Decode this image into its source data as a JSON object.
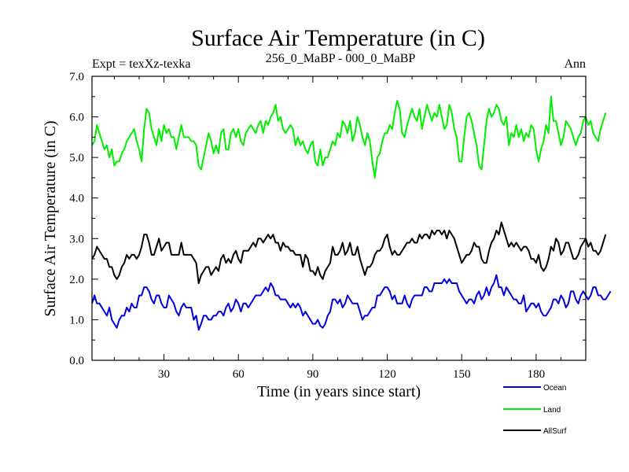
{
  "chart_data": {
    "type": "line",
    "title": "Surface Air Temperature (in C)",
    "subtitle_left": "Expt = texXz-texka",
    "subtitle_center": "256_0_MaBP - 000_0_MaBP",
    "subtitle_right": "Ann",
    "xlabel": "Time (in years since start)",
    "ylabel": "Surface Air Temperature (in C)",
    "xlim": [
      1,
      200
    ],
    "ylim": [
      0,
      7
    ],
    "x_ticks": [
      30,
      60,
      90,
      120,
      150,
      180
    ],
    "y_ticks": [
      0,
      1,
      2,
      3,
      4,
      5,
      6,
      7
    ],
    "y_tick_labels": [
      "0.0",
      "1.0",
      "2.0",
      "3.0",
      "4.0",
      "5.0",
      "6.0",
      "7.0"
    ],
    "legend_position": "bottom-right",
    "series": [
      {
        "name": "Ocean",
        "color": "#0000dd",
        "values": [
          1.4,
          1.6,
          1.4,
          1.4,
          1.3,
          1.2,
          1.1,
          1.3,
          1.0,
          0.9,
          0.8,
          1.0,
          1.1,
          1.1,
          1.3,
          1.2,
          1.4,
          1.3,
          1.3,
          1.6,
          1.6,
          1.8,
          1.8,
          1.7,
          1.5,
          1.4,
          1.6,
          1.6,
          1.4,
          1.3,
          1.3,
          1.6,
          1.5,
          1.4,
          1.2,
          1.1,
          1.3,
          1.4,
          1.3,
          1.3,
          1.3,
          1.0,
          1.1,
          0.75,
          0.9,
          1.1,
          1.1,
          1.0,
          1.0,
          1.1,
          1.1,
          1.2,
          1.2,
          1.1,
          1.3,
          1.4,
          1.2,
          1.3,
          1.5,
          1.4,
          1.2,
          1.4,
          1.4,
          1.3,
          1.4,
          1.5,
          1.6,
          1.6,
          1.6,
          1.7,
          1.8,
          1.7,
          1.9,
          1.8,
          1.6,
          1.6,
          1.5,
          1.5,
          1.5,
          1.4,
          1.3,
          1.4,
          1.3,
          1.4,
          1.3,
          1.1,
          1.2,
          1.1,
          1.0,
          0.9,
          0.9,
          1.0,
          0.85,
          0.8,
          0.9,
          1.1,
          1.2,
          1.5,
          1.5,
          1.4,
          1.5,
          1.3,
          1.4,
          1.6,
          1.5,
          1.4,
          1.4,
          1.4,
          1.2,
          1.0,
          1.1,
          1.1,
          1.2,
          1.3,
          1.3,
          1.6,
          1.6,
          1.7,
          1.8,
          1.8,
          1.7,
          1.5,
          1.6,
          1.4,
          1.4,
          1.4,
          1.6,
          1.4,
          1.3,
          1.5,
          1.6,
          1.6,
          1.6,
          1.6,
          1.8,
          1.8,
          1.7,
          1.7,
          1.9,
          1.9,
          1.9,
          1.9,
          2.0,
          1.9,
          2.0,
          1.9,
          1.9,
          1.9,
          1.7,
          1.6,
          1.5,
          1.4,
          1.5,
          1.5,
          1.4,
          1.6,
          1.7,
          1.5,
          1.6,
          1.8,
          1.6,
          1.8,
          1.9,
          2.1,
          1.8,
          1.8,
          1.6,
          1.8,
          1.7,
          1.6,
          1.5,
          1.5,
          1.4,
          1.4,
          1.6,
          1.2,
          1.3,
          1.4,
          1.4,
          1.3,
          1.4,
          1.2,
          1.1,
          1.1,
          1.2,
          1.3,
          1.5,
          1.5,
          1.4,
          1.6,
          1.5,
          1.3,
          1.4,
          1.7,
          1.7,
          1.5,
          1.4,
          1.6,
          1.7,
          1.6,
          1.5,
          1.6,
          1.8,
          1.8,
          1.6,
          1.6,
          1.5,
          1.5,
          1.6,
          1.7
        ]
      },
      {
        "name": "Land",
        "color": "#00ee00",
        "values": [
          5.3,
          5.4,
          5.8,
          5.6,
          5.4,
          5.2,
          5.3,
          5.0,
          5.2,
          4.8,
          4.9,
          4.9,
          5.1,
          5.2,
          5.4,
          5.5,
          5.6,
          5.7,
          5.4,
          5.2,
          4.9,
          5.7,
          6.2,
          6.1,
          5.7,
          5.5,
          5.3,
          5.7,
          5.4,
          5.8,
          5.6,
          5.7,
          5.5,
          5.5,
          5.2,
          5.5,
          5.8,
          5.5,
          5.5,
          5.5,
          5.4,
          5.4,
          5.3,
          4.8,
          4.7,
          5.0,
          5.3,
          5.6,
          5.4,
          5.1,
          5.3,
          5.1,
          5.6,
          5.7,
          5.2,
          5.2,
          5.6,
          5.7,
          5.5,
          5.7,
          5.4,
          5.3,
          5.6,
          5.7,
          5.8,
          5.7,
          5.6,
          5.8,
          5.9,
          5.6,
          5.9,
          5.8,
          6.0,
          6.1,
          6.3,
          5.9,
          6.0,
          5.7,
          5.6,
          5.7,
          5.8,
          5.7,
          5.3,
          5.5,
          5.3,
          5.4,
          5.2,
          5.1,
          5.3,
          5.4,
          4.9,
          4.8,
          5.2,
          4.8,
          5.0,
          5.0,
          5.2,
          5.4,
          5.3,
          5.6,
          5.5,
          5.9,
          5.8,
          5.6,
          5.9,
          5.4,
          5.6,
          6.0,
          5.8,
          5.5,
          5.3,
          5.6,
          5.4,
          4.9,
          4.5,
          5.0,
          5.1,
          5.4,
          5.6,
          5.6,
          5.8,
          5.7,
          6.1,
          6.4,
          6.2,
          5.6,
          5.5,
          5.8,
          6.0,
          6.2,
          6.0,
          5.9,
          6.2,
          5.7,
          6.0,
          6.3,
          6.1,
          5.9,
          6.1,
          6.0,
          6.3,
          6.0,
          5.7,
          5.8,
          6.3,
          6.1,
          5.7,
          5.5,
          4.9,
          4.9,
          5.5,
          6.0,
          6.1,
          5.9,
          5.6,
          5.3,
          4.8,
          4.7,
          5.3,
          5.9,
          6.2,
          6.0,
          6.1,
          6.3,
          6.2,
          5.9,
          5.8,
          6.0,
          5.3,
          5.6,
          5.5,
          5.8,
          5.5,
          5.7,
          5.4,
          5.6,
          5.5,
          5.8,
          5.7,
          5.2,
          4.9,
          5.2,
          5.4,
          5.8,
          5.6,
          6.5,
          5.9,
          5.9,
          5.6,
          5.3,
          5.5,
          5.9,
          5.8,
          5.7,
          5.5,
          5.3,
          5.5,
          5.6,
          5.9,
          6.0,
          5.8,
          5.9,
          5.6,
          5.5,
          5.4,
          5.7,
          5.9,
          6.1
        ]
      },
      {
        "name": "AllSurf",
        "color": "#000000",
        "values": [
          2.5,
          2.6,
          2.8,
          2.7,
          2.6,
          2.5,
          2.5,
          2.3,
          2.3,
          2.1,
          2.0,
          2.1,
          2.3,
          2.4,
          2.6,
          2.5,
          2.6,
          2.6,
          2.5,
          2.6,
          2.8,
          3.1,
          3.1,
          2.9,
          2.6,
          2.6,
          2.8,
          3.0,
          2.7,
          2.8,
          2.9,
          2.9,
          2.6,
          2.6,
          2.6,
          2.6,
          2.9,
          2.6,
          2.6,
          2.6,
          2.6,
          2.5,
          2.4,
          1.9,
          2.1,
          2.2,
          2.3,
          2.3,
          2.1,
          2.2,
          2.3,
          2.2,
          2.5,
          2.6,
          2.4,
          2.5,
          2.4,
          2.6,
          2.7,
          2.5,
          2.4,
          2.7,
          2.7,
          2.7,
          2.8,
          2.9,
          2.8,
          3.0,
          3.0,
          2.9,
          3.0,
          3.1,
          3.0,
          3.1,
          2.9,
          2.9,
          2.7,
          2.9,
          2.8,
          2.8,
          2.7,
          2.7,
          2.6,
          2.6,
          2.6,
          2.3,
          2.6,
          2.5,
          2.2,
          2.2,
          2.1,
          2.3,
          2.1,
          2.0,
          2.2,
          2.3,
          2.4,
          2.8,
          2.6,
          2.6,
          2.7,
          2.9,
          2.6,
          2.7,
          2.9,
          2.6,
          2.6,
          2.8,
          2.5,
          2.3,
          2.1,
          2.3,
          2.3,
          2.4,
          2.6,
          2.7,
          2.7,
          2.8,
          3.0,
          3.1,
          2.8,
          2.6,
          2.7,
          2.6,
          2.6,
          2.7,
          2.8,
          2.9,
          2.9,
          3.0,
          2.9,
          2.9,
          3.1,
          3.0,
          3.1,
          3.1,
          3.0,
          3.2,
          3.1,
          3.2,
          3.2,
          3.1,
          3.2,
          3.0,
          3.2,
          3.1,
          3.0,
          2.8,
          2.6,
          2.4,
          2.5,
          2.6,
          2.6,
          2.7,
          2.9,
          2.8,
          2.8,
          2.5,
          2.4,
          2.4,
          2.7,
          2.9,
          3.0,
          3.2,
          3.1,
          3.4,
          3.2,
          3.0,
          2.8,
          2.9,
          2.8,
          2.9,
          2.8,
          2.7,
          2.8,
          2.8,
          2.7,
          2.5,
          2.5,
          2.4,
          2.6,
          2.3,
          2.2,
          2.3,
          2.5,
          2.8,
          2.7,
          3.0,
          2.9,
          2.6,
          2.7,
          2.9,
          2.9,
          2.7,
          2.5,
          2.5,
          2.6,
          2.8,
          2.9,
          3.0,
          2.8,
          2.9,
          2.7,
          2.7,
          2.6,
          2.7,
          2.9,
          3.1
        ]
      }
    ]
  }
}
